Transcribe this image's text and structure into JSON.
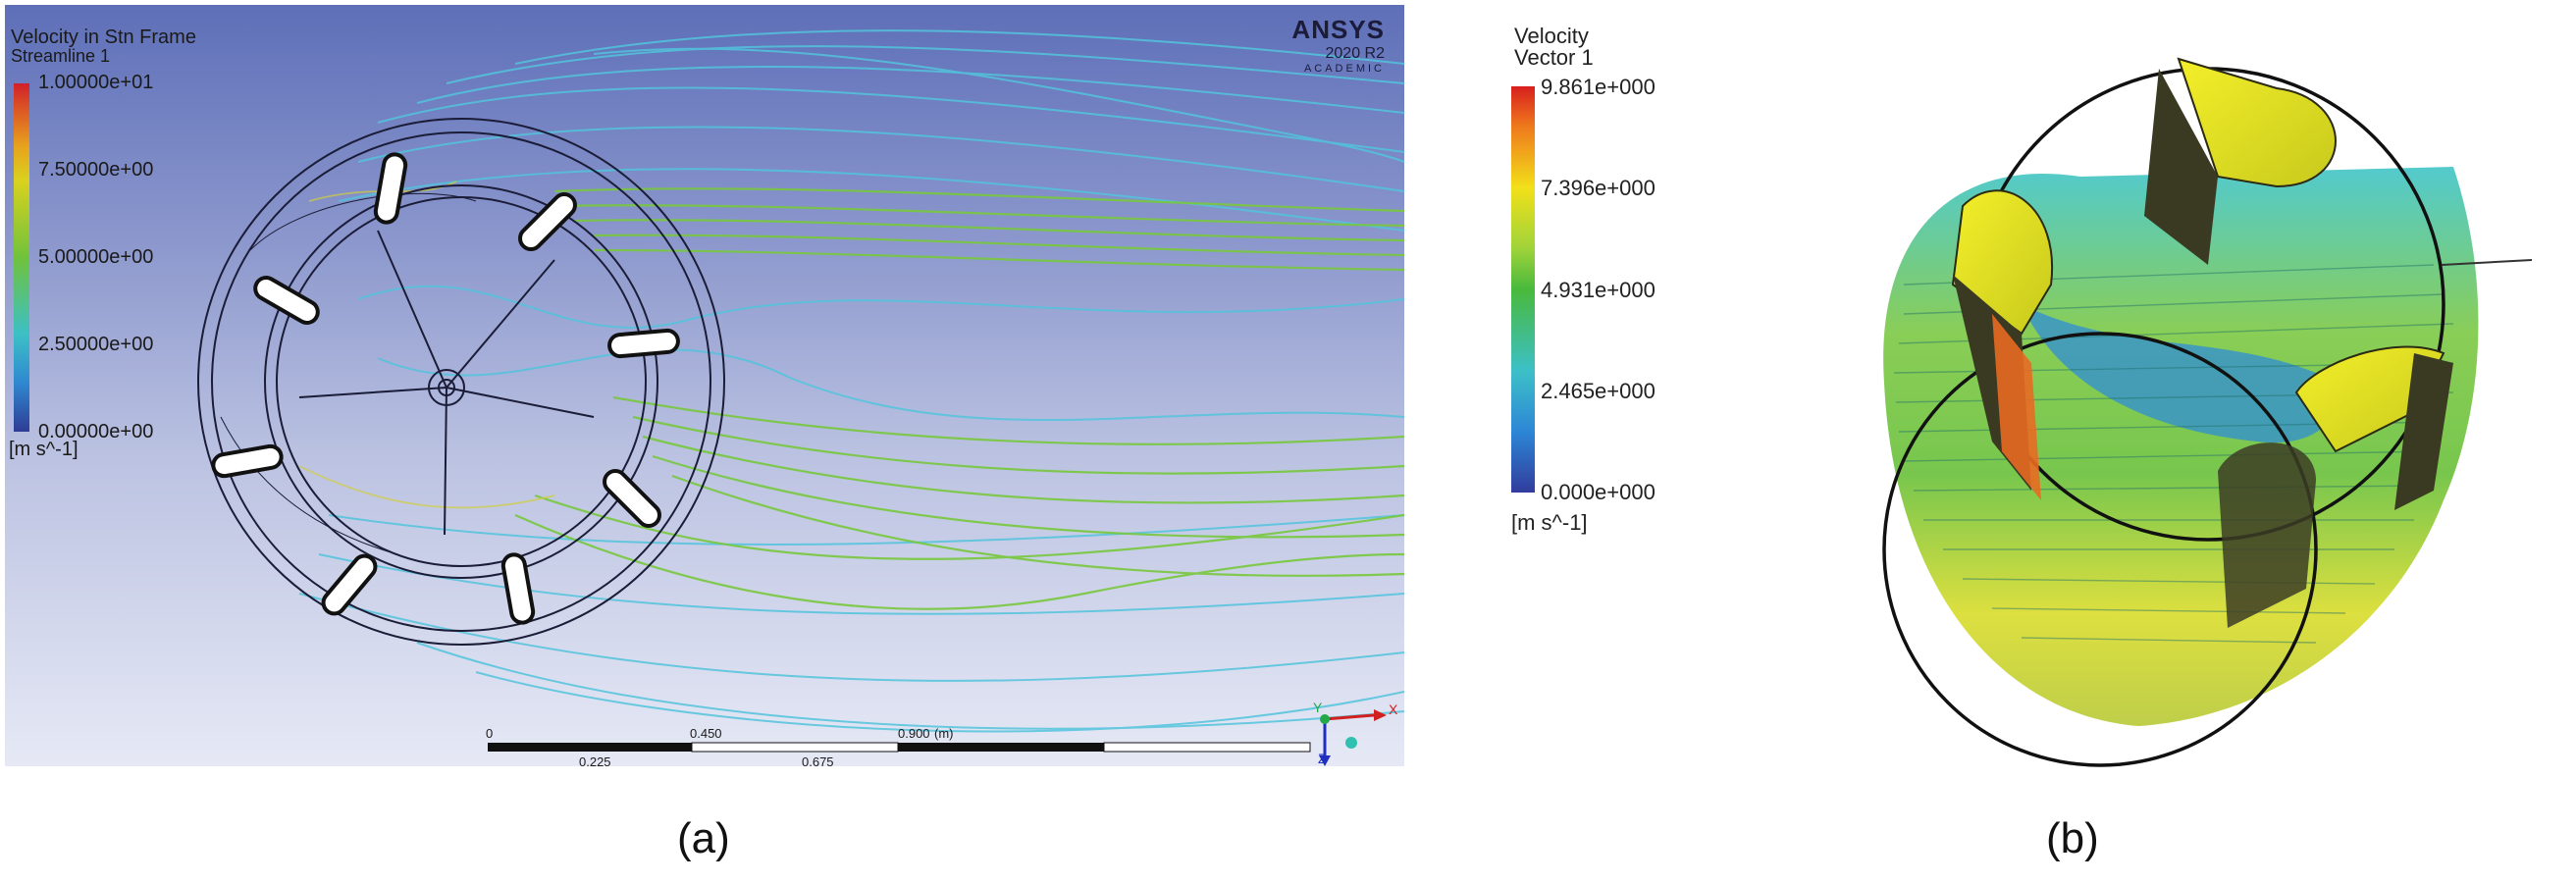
{
  "panel_a": {
    "title": "Velocity in Stn Frame",
    "subtitle": "Streamline 1",
    "colorbar_ticks": [
      "1.00000e+01",
      "7.50000e+00",
      "5.00000e+00",
      "2.50000e+00",
      "0.00000e+00"
    ],
    "unit": "[m s^-1]",
    "brand": {
      "logo": "ANSYS",
      "version": "2020 R2",
      "edition": "ACADEMIC"
    },
    "scale_bar": {
      "top_labels": [
        "0",
        "0.450",
        "0.900",
        "(m)"
      ],
      "bottom_labels": [
        "0.225",
        "0.675"
      ]
    },
    "axis_triad": {
      "x": "X",
      "y": "Y",
      "z": "Z"
    },
    "caption": "(a)"
  },
  "panel_b": {
    "title": "Velocity",
    "subtitle": "Vector 1",
    "colorbar_ticks": [
      "9.861e+000",
      "7.396e+000",
      "4.931e+000",
      "2.465e+000",
      "0.000e+000"
    ],
    "unit": "[m s^-1]",
    "caption": "(b)"
  }
}
